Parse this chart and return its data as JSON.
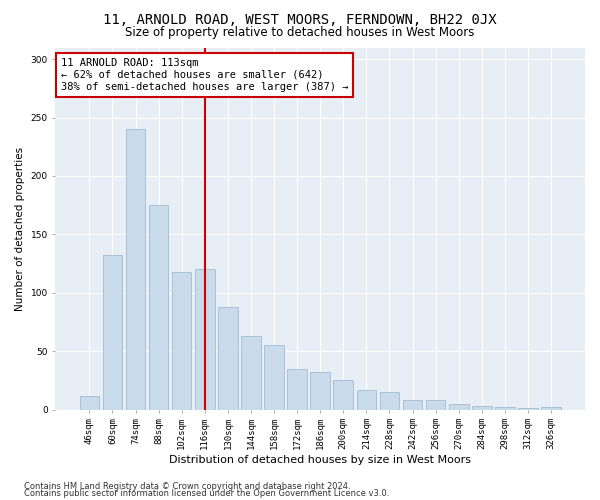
{
  "title": "11, ARNOLD ROAD, WEST MOORS, FERNDOWN, BH22 0JX",
  "subtitle": "Size of property relative to detached houses in West Moors",
  "xlabel": "Distribution of detached houses by size in West Moors",
  "ylabel": "Number of detached properties",
  "categories": [
    "46sqm",
    "60sqm",
    "74sqm",
    "88sqm",
    "102sqm",
    "116sqm",
    "130sqm",
    "144sqm",
    "158sqm",
    "172sqm",
    "186sqm",
    "200sqm",
    "214sqm",
    "228sqm",
    "242sqm",
    "256sqm",
    "270sqm",
    "284sqm",
    "298sqm",
    "312sqm",
    "326sqm"
  ],
  "values": [
    12,
    132,
    240,
    175,
    118,
    120,
    88,
    63,
    55,
    35,
    32,
    25,
    17,
    15,
    8,
    8,
    5,
    3,
    2,
    1,
    2
  ],
  "bar_color": "#c9daea",
  "bar_edge_color": "#a0bcd4",
  "vline_x": 5,
  "vline_color": "#cc0000",
  "annotation_text": "11 ARNOLD ROAD: 113sqm\n← 62% of detached houses are smaller (642)\n38% of semi-detached houses are larger (387) →",
  "annotation_box_color": "#ffffff",
  "annotation_box_edge": "#cc0000",
  "ylim": [
    0,
    310
  ],
  "yticks": [
    0,
    50,
    100,
    150,
    200,
    250,
    300
  ],
  "footer1": "Contains HM Land Registry data © Crown copyright and database right 2024.",
  "footer2": "Contains public sector information licensed under the Open Government Licence v3.0.",
  "bg_color": "#e8eef5",
  "title_fontsize": 10,
  "subtitle_fontsize": 8.5,
  "xlabel_fontsize": 8,
  "ylabel_fontsize": 7.5,
  "tick_fontsize": 6.5,
  "footer_fontsize": 6,
  "annotation_fontsize": 7.5
}
